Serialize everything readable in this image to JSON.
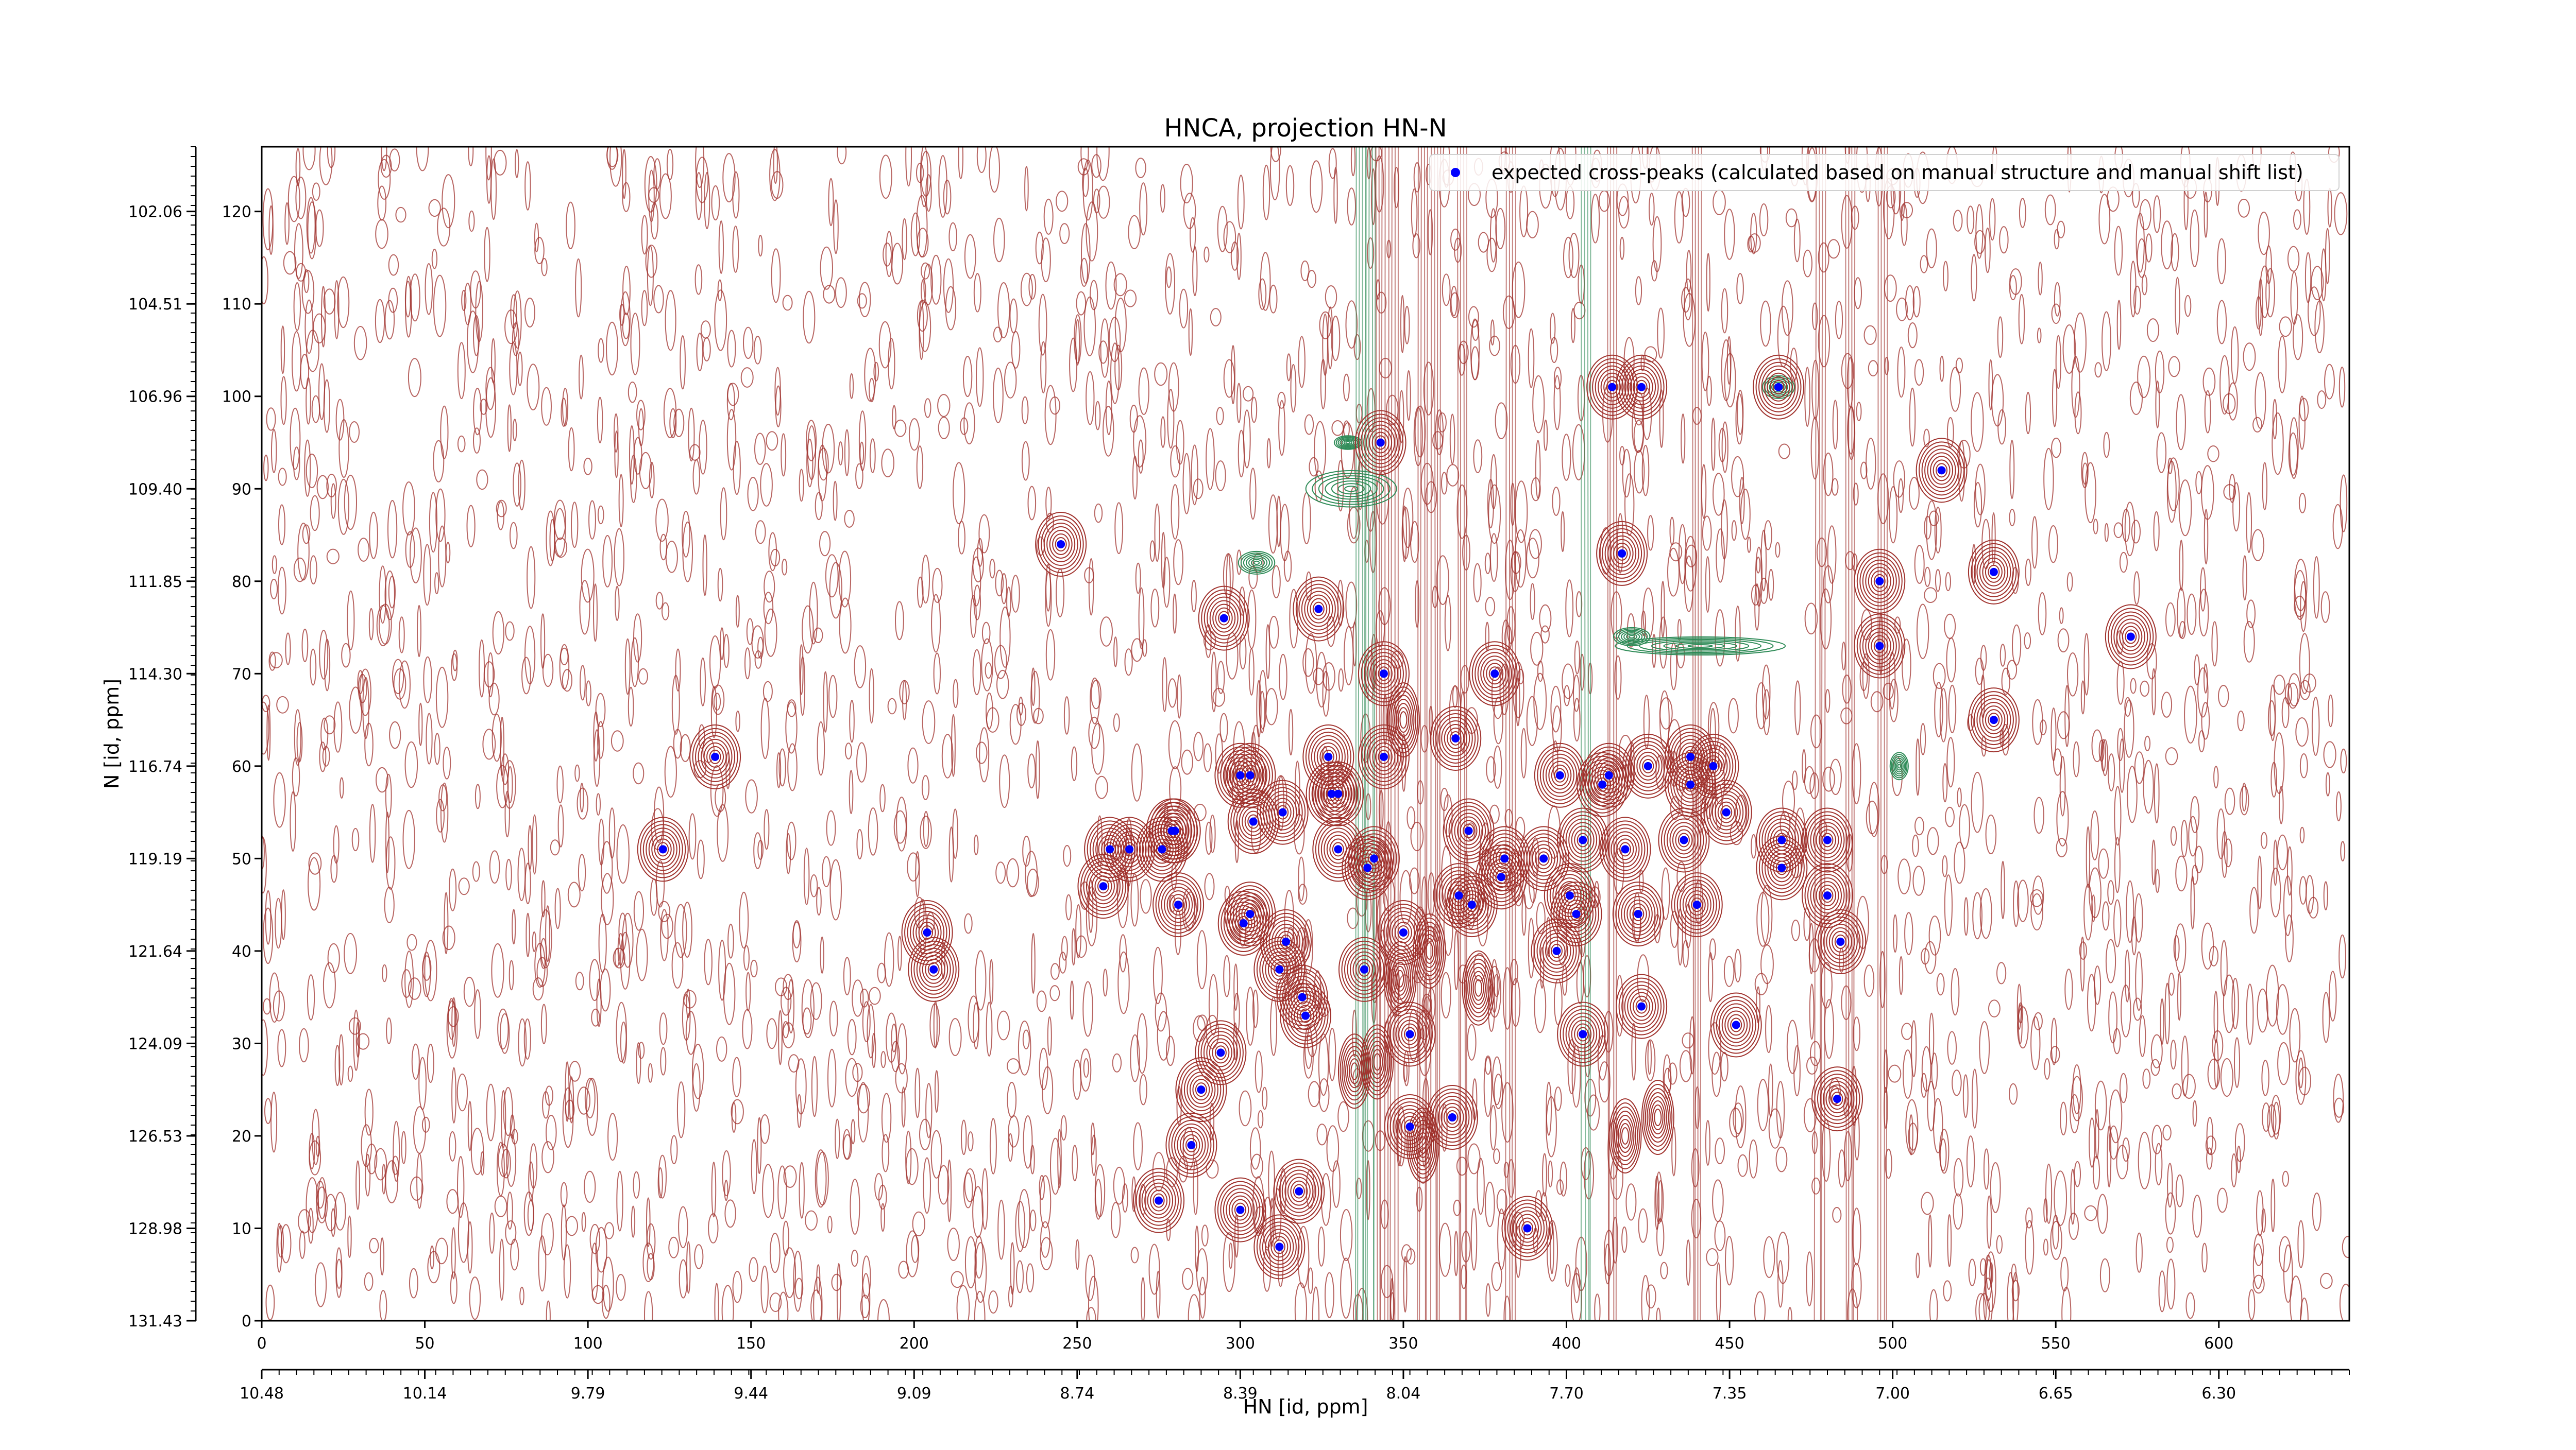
{
  "chart_data": {
    "type": "scatter",
    "title": "HNCA, projection HN-N",
    "xlabel": "HN [id, ppm]",
    "ylabel": "N [id, ppm]",
    "x_index_range": [
      0,
      640
    ],
    "y_index_range": [
      0,
      127
    ],
    "x_index_ticks": [
      0,
      50,
      100,
      150,
      200,
      250,
      300,
      350,
      400,
      450,
      500,
      550,
      600
    ],
    "y_index_ticks": [
      0,
      10,
      20,
      30,
      40,
      50,
      60,
      70,
      80,
      90,
      100,
      110,
      120
    ],
    "x_ppm_ticks": [
      "10.48",
      "10.14",
      "9.79",
      "9.44",
      "9.09",
      "8.74",
      "8.39",
      "8.04",
      "7.70",
      "7.35",
      "7.00",
      "6.65",
      "6.30"
    ],
    "y_ppm_ticks": [
      "131.43",
      "128.98",
      "126.53",
      "124.09",
      "121.64",
      "119.19",
      "116.74",
      "114.30",
      "111.85",
      "109.40",
      "106.96",
      "104.51",
      "102.06"
    ],
    "grid": false,
    "legend_position": "top-right",
    "colors": {
      "positive_contour": "#a0322d",
      "negative_contour": "#2e8b57",
      "marker": "#0000ff"
    },
    "series": [
      {
        "name": "expected cross-peaks (calculated based on manual structure and manual shift list)",
        "points": [
          [
            123,
            51
          ],
          [
            139,
            61
          ],
          [
            204,
            42
          ],
          [
            206,
            38
          ],
          [
            245,
            84
          ],
          [
            258,
            47
          ],
          [
            260,
            51
          ],
          [
            266,
            51
          ],
          [
            275,
            13
          ],
          [
            276,
            51
          ],
          [
            279,
            53
          ],
          [
            280,
            53
          ],
          [
            281,
            45
          ],
          [
            285,
            19
          ],
          [
            288,
            25
          ],
          [
            294,
            29
          ],
          [
            295,
            76
          ],
          [
            300,
            12
          ],
          [
            300,
            59
          ],
          [
            301,
            43
          ],
          [
            303,
            59
          ],
          [
            303,
            44
          ],
          [
            304,
            54
          ],
          [
            312,
            8
          ],
          [
            312,
            38
          ],
          [
            313,
            55
          ],
          [
            314,
            41
          ],
          [
            318,
            14
          ],
          [
            319,
            35
          ],
          [
            320,
            33
          ],
          [
            324,
            77
          ],
          [
            327,
            61
          ],
          [
            328,
            57
          ],
          [
            330,
            57
          ],
          [
            330,
            51
          ],
          [
            338,
            38
          ],
          [
            339,
            49
          ],
          [
            341,
            50
          ],
          [
            343,
            95
          ],
          [
            344,
            70
          ],
          [
            344,
            61
          ],
          [
            350,
            42
          ],
          [
            352,
            31
          ],
          [
            352,
            21
          ],
          [
            365,
            22
          ],
          [
            366,
            63
          ],
          [
            367,
            46
          ],
          [
            370,
            53
          ],
          [
            371,
            45
          ],
          [
            378,
            70
          ],
          [
            380,
            48
          ],
          [
            381,
            50
          ],
          [
            388,
            10
          ],
          [
            393,
            50
          ],
          [
            397,
            40
          ],
          [
            398,
            59
          ],
          [
            401,
            46
          ],
          [
            403,
            44
          ],
          [
            405,
            52
          ],
          [
            405,
            31
          ],
          [
            411,
            58
          ],
          [
            413,
            59
          ],
          [
            414,
            101
          ],
          [
            417,
            83
          ],
          [
            418,
            51
          ],
          [
            422,
            44
          ],
          [
            423,
            101
          ],
          [
            423,
            34
          ],
          [
            425,
            60
          ],
          [
            436,
            52
          ],
          [
            438,
            61
          ],
          [
            438,
            58
          ],
          [
            440,
            45
          ],
          [
            445,
            60
          ],
          [
            449,
            55
          ],
          [
            452,
            32
          ],
          [
            465,
            101
          ],
          [
            466,
            52
          ],
          [
            466,
            49
          ],
          [
            480,
            46
          ],
          [
            480,
            52
          ],
          [
            483,
            24
          ],
          [
            484,
            41
          ],
          [
            496,
            80
          ],
          [
            496,
            73
          ],
          [
            515,
            92
          ],
          [
            531,
            81
          ],
          [
            531,
            65
          ],
          [
            573,
            74
          ]
        ]
      }
    ]
  }
}
